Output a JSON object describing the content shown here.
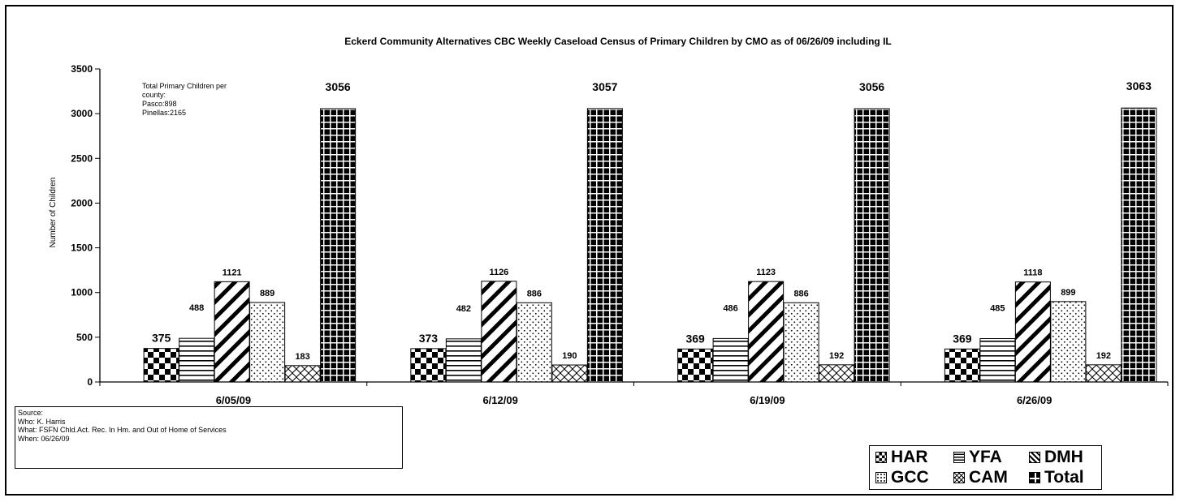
{
  "chart_data": {
    "type": "bar",
    "title": "Eckerd Community Alternatives CBC  Weekly Caseload Census of Primary Children by CMO as of  06/26/09 including IL",
    "ylabel": "Number of Children",
    "ylim": [
      0,
      3500
    ],
    "yticks": [
      0,
      500,
      1000,
      1500,
      2000,
      2500,
      3000,
      3500
    ],
    "categories": [
      "6/05/09",
      "6/12/09",
      "6/19/09",
      "6/26/09"
    ],
    "series": [
      {
        "name": "HAR",
        "pattern": "checker",
        "values": [
          375,
          373,
          369,
          369
        ]
      },
      {
        "name": "YFA",
        "pattern": "hlines",
        "values": [
          488,
          482,
          486,
          485
        ]
      },
      {
        "name": "DMH",
        "pattern": "diag",
        "values": [
          1121,
          1126,
          1123,
          1118
        ]
      },
      {
        "name": "GCC",
        "pattern": "dots",
        "values": [
          889,
          886,
          886,
          899
        ]
      },
      {
        "name": "CAM",
        "pattern": "cross",
        "values": [
          183,
          190,
          192,
          192
        ]
      },
      {
        "name": "Total",
        "pattern": "grid",
        "values": [
          3056,
          3057,
          3056,
          3063
        ]
      }
    ],
    "grid": false,
    "legend": "bottom-right",
    "annotation": [
      "Total Primary Children per",
      "county:",
      "Pasco:898",
      "Pinellas:2165"
    ]
  },
  "source_box": {
    "lines": [
      "Source:",
      "Who: K. Harris",
      "What: FSFN Chld.Act. Rec. In Hm. and Out of Home of Services",
      "When: 06/26/09"
    ]
  },
  "colors": {
    "ink": "#000000",
    "background": "#ffffff"
  }
}
